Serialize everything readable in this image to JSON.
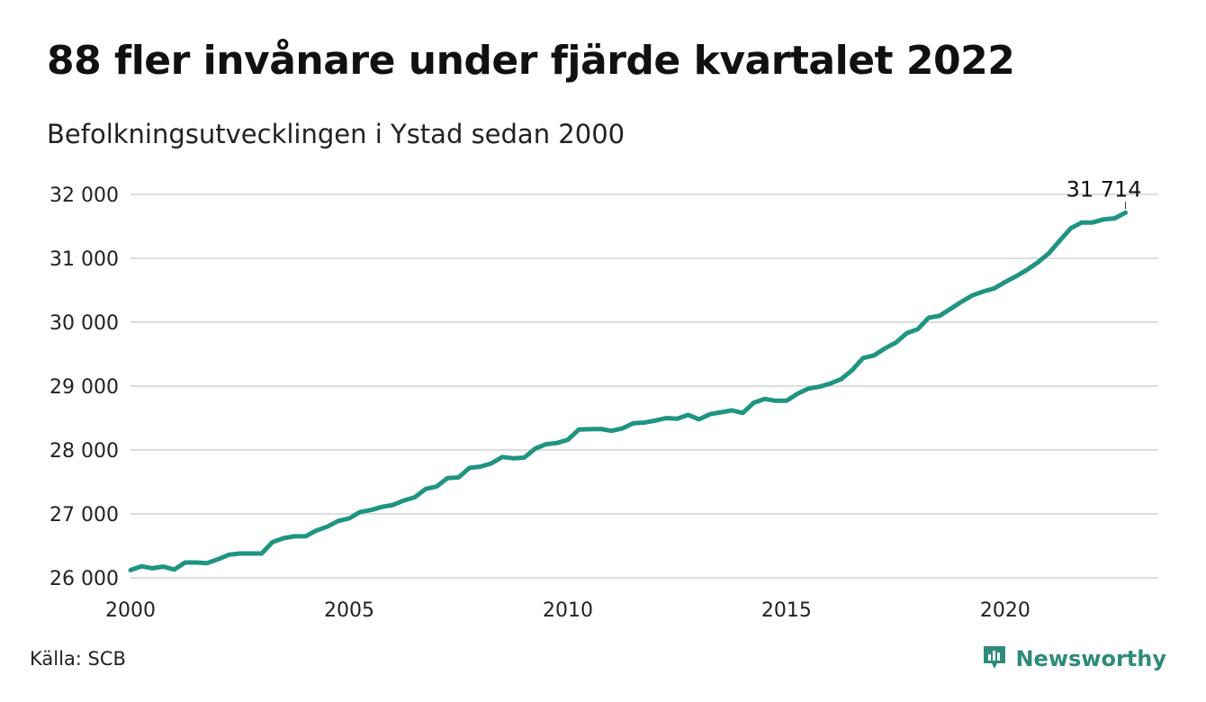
{
  "title": "88 fler invånare under fjärde kvartalet 2022",
  "subtitle": "Befolkningsutvecklingen i Ystad sedan 2000",
  "source": "Källa: SCB",
  "brand": {
    "name": "Newsworthy",
    "icon": "newsworthy-logo-icon",
    "color": "#2e8b7a"
  },
  "colors": {
    "line": "#1f9482",
    "grid": "#dddddd",
    "text": "#222222"
  },
  "chart_data": {
    "type": "line",
    "title": "88 fler invånare under fjärde kvartalet 2022",
    "subtitle": "Befolkningsutvecklingen i Ystad sedan 2000",
    "xlabel": "",
    "ylabel": "",
    "xlim": [
      2000,
      2023.5
    ],
    "ylim": [
      26000,
      32000
    ],
    "xticks": [
      2000,
      2005,
      2010,
      2015,
      2020
    ],
    "xtick_labels": [
      "2000",
      "2005",
      "2010",
      "2015",
      "2020"
    ],
    "yticks": [
      26000,
      27000,
      28000,
      29000,
      30000,
      31000,
      32000
    ],
    "ytick_labels": [
      "26 000",
      "27 000",
      "28 000",
      "29 000",
      "30 000",
      "31 000",
      "32 000"
    ],
    "grid": "horizontal",
    "end_label": "31 714",
    "series": [
      {
        "x": [
          2000.0,
          2000.25,
          2000.5,
          2000.75,
          2001.0,
          2001.25,
          2001.5,
          2001.75,
          2002.0,
          2002.25,
          2002.5,
          2002.75,
          2003.0,
          2003.25,
          2003.5,
          2003.75,
          2004.0,
          2004.25,
          2004.5,
          2004.75,
          2005.0,
          2005.25,
          2005.5,
          2005.75,
          2006.0,
          2006.25,
          2006.5,
          2006.75,
          2007.0,
          2007.25,
          2007.5,
          2007.75,
          2008.0,
          2008.25,
          2008.5,
          2008.75,
          2009.0,
          2009.25,
          2009.5,
          2009.75,
          2010.0,
          2010.25,
          2010.5,
          2010.75,
          2011.0,
          2011.25,
          2011.5,
          2011.75,
          2012.0,
          2012.25,
          2012.5,
          2012.75,
          2013.0,
          2013.25,
          2013.5,
          2013.75,
          2014.0,
          2014.25,
          2014.5,
          2014.75,
          2015.0,
          2015.25,
          2015.5,
          2015.75,
          2016.0,
          2016.25,
          2016.5,
          2016.75,
          2017.0,
          2017.25,
          2017.5,
          2017.75,
          2018.0,
          2018.25,
          2018.5,
          2018.75,
          2019.0,
          2019.25,
          2019.5,
          2019.75,
          2020.0,
          2020.25,
          2020.5,
          2020.75,
          2021.0,
          2021.25,
          2021.5,
          2021.75,
          2022.0,
          2022.25,
          2022.5,
          2022.75
        ],
        "values": [
          26120,
          26180,
          26150,
          26175,
          26130,
          26240,
          26240,
          26230,
          26290,
          26360,
          26380,
          26380,
          26380,
          26560,
          26620,
          26650,
          26650,
          26740,
          26800,
          26890,
          26930,
          27030,
          27060,
          27110,
          27140,
          27210,
          27260,
          27390,
          27430,
          27560,
          27570,
          27720,
          27740,
          27790,
          27890,
          27870,
          27880,
          28020,
          28090,
          28110,
          28160,
          28320,
          28325,
          28330,
          28300,
          28340,
          28420,
          28430,
          28460,
          28500,
          28490,
          28550,
          28480,
          28560,
          28590,
          28620,
          28580,
          28740,
          28800,
          28770,
          28770,
          28880,
          28960,
          28990,
          29040,
          29110,
          29250,
          29440,
          29480,
          29590,
          29680,
          29830,
          29890,
          30070,
          30100,
          30210,
          30320,
          30420,
          30480,
          30530,
          30630,
          30720,
          30820,
          30940,
          31080,
          31280,
          31470,
          31560,
          31560,
          31610,
          31626,
          31714
        ]
      }
    ]
  }
}
